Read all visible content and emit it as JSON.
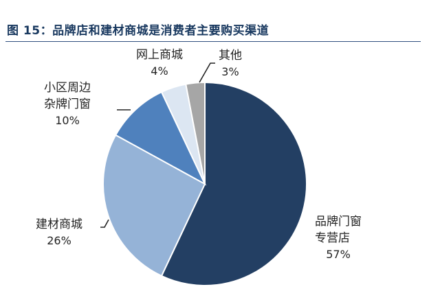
{
  "figure_title": "图 15：品牌店和建材商城是消费者主要购买渠道",
  "chart_data": {
    "type": "pie",
    "title": "图 15：品牌店和建材商城是消费者主要购买渠道",
    "start_angle_deg": 0,
    "direction": "clockwise",
    "slices": [
      {
        "label": "品牌门窗专营店",
        "label_lines": [
          "品牌门窗",
          "专营店"
        ],
        "value": 57,
        "value_label": "57%",
        "color": "#233f63"
      },
      {
        "label": "建材商城",
        "label_lines": [
          "建材商城"
        ],
        "value": 26,
        "value_label": "26%",
        "color": "#95b3d7"
      },
      {
        "label": "小区周边杂牌门窗",
        "label_lines": [
          "小区周边",
          "杂牌门窗"
        ],
        "value": 10,
        "value_label": "10%",
        "color": "#4f81bd"
      },
      {
        "label": "网上商城",
        "label_lines": [
          "网上商城"
        ],
        "value": 4,
        "value_label": "4%",
        "color": "#dce6f2"
      },
      {
        "label": "其他",
        "label_lines": [
          "其他"
        ],
        "value": 3,
        "value_label": "3%",
        "color": "#a6a6a6"
      }
    ]
  }
}
